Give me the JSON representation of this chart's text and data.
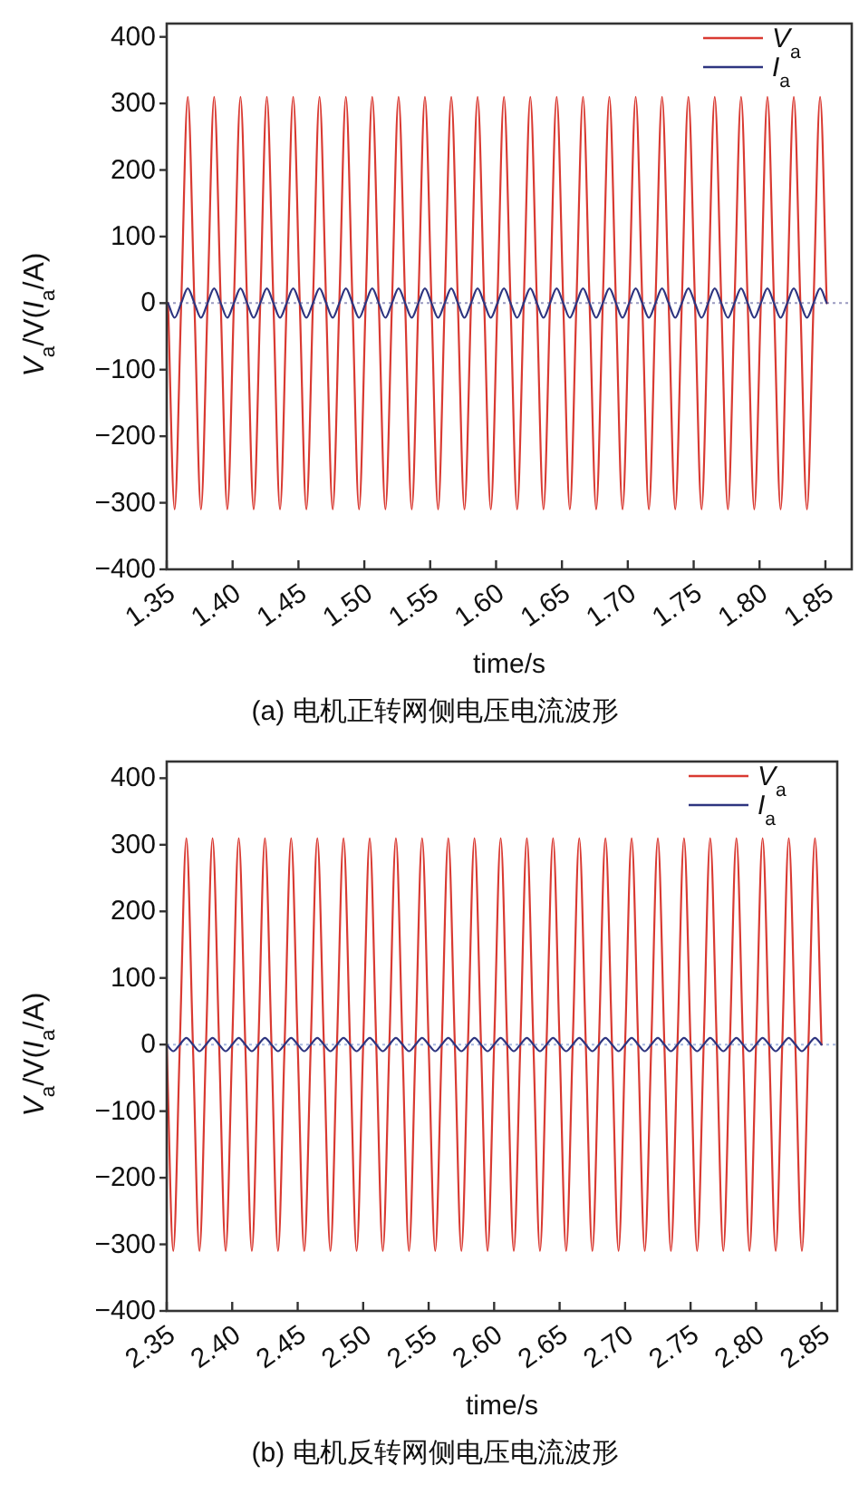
{
  "chart_data": [
    {
      "type": "line",
      "title": "(a) 电机正转网侧电压电流波形",
      "xlabel": "time/s",
      "ylabel": "V$_{a}$/V(I$_{a}$/A)",
      "legend": "top right",
      "xlim": [
        1.35,
        1.87
      ],
      "ylim": [
        -400,
        420
      ],
      "xticks": [
        {
          "value": 1.35,
          "label": "1.35"
        },
        {
          "value": 1.4,
          "label": "1.40"
        },
        {
          "value": 1.45,
          "label": "1.45"
        },
        {
          "value": 1.5,
          "label": "1.50"
        },
        {
          "value": 1.55,
          "label": "1.55"
        },
        {
          "value": 1.6,
          "label": "1.60"
        },
        {
          "value": 1.65,
          "label": "1.65"
        },
        {
          "value": 1.7,
          "label": "1.70"
        },
        {
          "value": 1.75,
          "label": "1.75"
        },
        {
          "value": 1.8,
          "label": "1.80"
        },
        {
          "value": 1.85,
          "label": "1.85"
        }
      ],
      "yticks": [
        {
          "value": -400,
          "label": "−400"
        },
        {
          "value": -300,
          "label": "−300"
        },
        {
          "value": -200,
          "label": "−200"
        },
        {
          "value": -100,
          "label": "−100"
        },
        0,
        100,
        200,
        300,
        400
      ],
      "ref_lines": [
        {
          "axis": "y",
          "value": 0,
          "color": "#9a9ac0",
          "line_style": "dotted"
        }
      ],
      "x": [
        1.351,
        1.356,
        1.361,
        1.366,
        1.371,
        1.376,
        1.381,
        1.386,
        1.391,
        1.396,
        1.401,
        1.406,
        1.411,
        1.416,
        1.421,
        1.426,
        1.431,
        1.436,
        1.441,
        1.446,
        1.451,
        1.456,
        1.461,
        1.466,
        1.471,
        1.476,
        1.481,
        1.486,
        1.491,
        1.496,
        1.501,
        1.506,
        1.511,
        1.516,
        1.521,
        1.526,
        1.531,
        1.536,
        1.541,
        1.546,
        1.551,
        1.556,
        1.561,
        1.566,
        1.571,
        1.576,
        1.581,
        1.586,
        1.591,
        1.596,
        1.601,
        1.606,
        1.611,
        1.616,
        1.621,
        1.626,
        1.631,
        1.636,
        1.641,
        1.646,
        1.651,
        1.656,
        1.661,
        1.666,
        1.671,
        1.676,
        1.681,
        1.686,
        1.691,
        1.696,
        1.701,
        1.706,
        1.711,
        1.716,
        1.721,
        1.726,
        1.731,
        1.736,
        1.741,
        1.746,
        1.751,
        1.756,
        1.761,
        1.766,
        1.771,
        1.776,
        1.781,
        1.786,
        1.791,
        1.796,
        1.801,
        1.806,
        1.811,
        1.816,
        1.821,
        1.826,
        1.831,
        1.836,
        1.841,
        1.846,
        1.851
      ],
      "series": [
        {
          "name": "V$_{a}$",
          "color": "#d93a32",
          "values": [
            0,
            -310,
            0,
            310,
            0,
            -310,
            0,
            310,
            0,
            -310,
            0,
            310,
            0,
            -310,
            0,
            310,
            0,
            -310,
            0,
            310,
            0,
            -310,
            0,
            310,
            0,
            -310,
            0,
            310,
            0,
            -310,
            0,
            310,
            0,
            -310,
            0,
            310,
            0,
            -310,
            0,
            310,
            0,
            -310,
            0,
            310,
            0,
            -310,
            0,
            310,
            0,
            -310,
            0,
            310,
            0,
            -310,
            0,
            310,
            0,
            -310,
            0,
            310,
            0,
            -310,
            0,
            310,
            0,
            -310,
            0,
            310,
            0,
            -310,
            0,
            310,
            0,
            -310,
            0,
            310,
            0,
            -310,
            0,
            310,
            0,
            -310,
            0,
            310,
            0,
            -310,
            0,
            310,
            0,
            -310,
            0,
            310,
            0,
            -310,
            0,
            310,
            0,
            -310,
            0,
            310,
            0
          ]
        },
        {
          "name": "I$_{a}$",
          "color": "#2e3580",
          "values": [
            0,
            -22,
            0,
            22,
            0,
            -22,
            0,
            22,
            0,
            -22,
            0,
            22,
            0,
            -22,
            0,
            22,
            0,
            -22,
            0,
            22,
            0,
            -22,
            0,
            22,
            0,
            -22,
            0,
            22,
            0,
            -22,
            0,
            22,
            0,
            -22,
            0,
            22,
            0,
            -22,
            0,
            22,
            0,
            -22,
            0,
            22,
            0,
            -22,
            0,
            22,
            0,
            -22,
            0,
            22,
            0,
            -22,
            0,
            22,
            0,
            -22,
            0,
            22,
            0,
            -22,
            0,
            22,
            0,
            -22,
            0,
            22,
            0,
            -22,
            0,
            22,
            0,
            -22,
            0,
            22,
            0,
            -22,
            0,
            22,
            0,
            -22,
            0,
            22,
            0,
            -22,
            0,
            22,
            0,
            -22,
            0,
            22,
            0,
            -22,
            0,
            22,
            0,
            -22,
            0,
            22,
            0
          ]
        }
      ]
    },
    {
      "type": "line",
      "title": "(b) 电机反转网侧电压电流波形",
      "xlabel": "time/s",
      "ylabel": "V$_{a}$/V(I$_{a}$/A)",
      "legend": "top right",
      "xlim": [
        2.35,
        2.862
      ],
      "ylim": [
        -400,
        425
      ],
      "xticks": [
        {
          "value": 2.35,
          "label": "2.35"
        },
        {
          "value": 2.4,
          "label": "2.40"
        },
        {
          "value": 2.45,
          "label": "2.45"
        },
        {
          "value": 2.5,
          "label": "2.50"
        },
        {
          "value": 2.55,
          "label": "2.55"
        },
        {
          "value": 2.6,
          "label": "2.60"
        },
        {
          "value": 2.65,
          "label": "2.65"
        },
        {
          "value": 2.7,
          "label": "2.70"
        },
        {
          "value": 2.75,
          "label": "2.75"
        },
        {
          "value": 2.8,
          "label": "2.80"
        },
        {
          "value": 2.85,
          "label": "2.85"
        }
      ],
      "yticks": [
        {
          "value": -400,
          "label": "−400"
        },
        {
          "value": -300,
          "label": "−300"
        },
        {
          "value": -200,
          "label": "−200"
        },
        {
          "value": -100,
          "label": "−100"
        },
        0,
        100,
        200,
        300,
        400
      ],
      "ref_lines": [
        {
          "axis": "y",
          "value": 0,
          "color": "#a8b8e0",
          "line_style": "dotted"
        }
      ],
      "x": [
        2.35,
        2.355,
        2.36,
        2.365,
        2.37,
        2.375,
        2.38,
        2.385,
        2.39,
        2.395,
        2.4,
        2.405,
        2.41,
        2.415,
        2.42,
        2.425,
        2.43,
        2.435,
        2.44,
        2.445,
        2.45,
        2.455,
        2.46,
        2.465,
        2.47,
        2.475,
        2.48,
        2.485,
        2.49,
        2.495,
        2.5,
        2.505,
        2.51,
        2.515,
        2.52,
        2.525,
        2.53,
        2.535,
        2.54,
        2.545,
        2.55,
        2.555,
        2.56,
        2.565,
        2.57,
        2.575,
        2.58,
        2.585,
        2.59,
        2.595,
        2.6,
        2.605,
        2.61,
        2.615,
        2.62,
        2.625,
        2.63,
        2.635,
        2.64,
        2.645,
        2.65,
        2.655,
        2.66,
        2.665,
        2.67,
        2.675,
        2.68,
        2.685,
        2.69,
        2.695,
        2.7,
        2.705,
        2.71,
        2.715,
        2.72,
        2.725,
        2.73,
        2.735,
        2.74,
        2.745,
        2.75,
        2.755,
        2.76,
        2.765,
        2.77,
        2.775,
        2.78,
        2.785,
        2.79,
        2.795,
        2.8,
        2.805,
        2.81,
        2.815,
        2.82,
        2.825,
        2.83,
        2.835,
        2.84,
        2.845,
        2.85
      ],
      "series": [
        {
          "name": "V$_{a}$",
          "color": "#d93a32",
          "values": [
            0,
            -310,
            0,
            310,
            0,
            -310,
            0,
            310,
            0,
            -310,
            0,
            310,
            0,
            -310,
            0,
            310,
            0,
            -310,
            0,
            310,
            0,
            -310,
            0,
            310,
            0,
            -310,
            0,
            310,
            0,
            -310,
            0,
            310,
            0,
            -310,
            0,
            310,
            0,
            -310,
            0,
            310,
            0,
            -310,
            0,
            310,
            0,
            -310,
            0,
            310,
            0,
            -310,
            0,
            310,
            0,
            -310,
            0,
            310,
            0,
            -310,
            0,
            310,
            0,
            -310,
            0,
            310,
            0,
            -310,
            0,
            310,
            0,
            -310,
            0,
            310,
            0,
            -310,
            0,
            310,
            0,
            -310,
            0,
            310,
            0,
            -310,
            0,
            310,
            0,
            -310,
            0,
            310,
            0,
            -310,
            0,
            310,
            0,
            -310,
            0,
            310,
            0,
            -310,
            0,
            310,
            0
          ]
        },
        {
          "name": "I$_{a}$",
          "color": "#2e3580",
          "values": [
            0,
            -10,
            0,
            10,
            0,
            -10,
            0,
            10,
            0,
            -10,
            0,
            10,
            0,
            -10,
            0,
            10,
            0,
            -10,
            0,
            10,
            0,
            -10,
            0,
            10,
            0,
            -10,
            0,
            10,
            0,
            -10,
            0,
            10,
            0,
            -10,
            0,
            10,
            0,
            -10,
            0,
            10,
            0,
            -10,
            0,
            10,
            0,
            -10,
            0,
            10,
            0,
            -10,
            0,
            10,
            0,
            -10,
            0,
            10,
            0,
            -10,
            0,
            10,
            0,
            -10,
            0,
            10,
            0,
            -10,
            0,
            10,
            0,
            -10,
            0,
            10,
            0,
            -10,
            0,
            10,
            0,
            -10,
            0,
            10,
            0,
            -10,
            0,
            10,
            0,
            -10,
            0,
            10,
            0,
            -10,
            0,
            10,
            0,
            -10,
            0,
            10,
            0,
            -10,
            0,
            10,
            0
          ]
        }
      ]
    }
  ]
}
